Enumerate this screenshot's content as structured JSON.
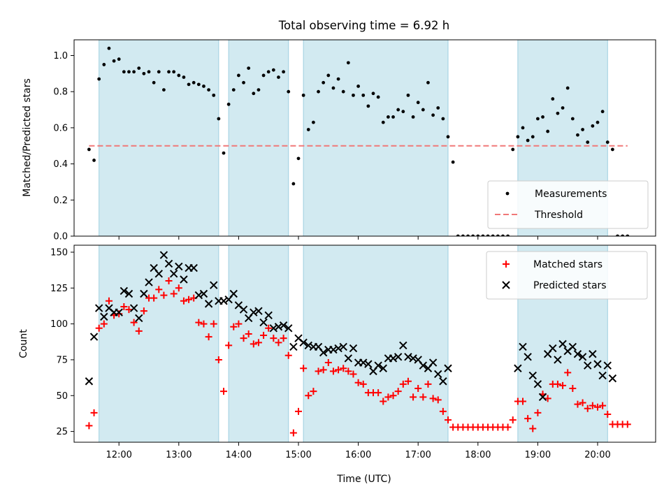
{
  "chart_data": [
    {
      "type": "scatter",
      "title": "Total observing time = 6.92 h",
      "xlabel": "",
      "ylabel": "Matched/Predicted stars",
      "ylim": [
        0,
        1.09
      ],
      "yticks": [
        "0.0",
        "0.2",
        "0.4",
        "0.6",
        "0.8",
        "1.0"
      ],
      "xticks": [
        "12:00",
        "13:00",
        "14:00",
        "15:00",
        "16:00",
        "17:00",
        "18:00",
        "19:00",
        "20:00"
      ],
      "legend_position": "lower right",
      "threshold": 0.5,
      "shaded_intervals": [
        [
          "11:40",
          "13:40"
        ],
        [
          "13:50",
          "14:50"
        ],
        [
          "15:05",
          "17:30"
        ],
        [
          "18:40",
          "20:10"
        ]
      ],
      "series": [
        {
          "name": "Measurements",
          "marker": "dot",
          "color": "#000000",
          "x": [
            "11:30",
            "11:35",
            "11:40",
            "11:45",
            "11:50",
            "11:55",
            "12:00",
            "12:05",
            "12:10",
            "12:15",
            "12:20",
            "12:25",
            "12:30",
            "12:35",
            "12:40",
            "12:45",
            "12:50",
            "12:55",
            "13:00",
            "13:05",
            "13:10",
            "13:15",
            "13:20",
            "13:25",
            "13:30",
            "13:35",
            "13:40",
            "13:45",
            "13:50",
            "13:55",
            "14:00",
            "14:05",
            "14:10",
            "14:15",
            "14:20",
            "14:25",
            "14:30",
            "14:35",
            "14:40",
            "14:45",
            "14:50",
            "14:55",
            "15:00",
            "15:05",
            "15:10",
            "15:15",
            "15:20",
            "15:25",
            "15:30",
            "15:35",
            "15:40",
            "15:45",
            "15:50",
            "15:55",
            "16:00",
            "16:05",
            "16:10",
            "16:15",
            "16:20",
            "16:25",
            "16:30",
            "16:35",
            "16:40",
            "16:45",
            "16:50",
            "16:55",
            "17:00",
            "17:05",
            "17:10",
            "17:15",
            "17:20",
            "17:25",
            "17:30",
            "17:35",
            "17:40",
            "17:45",
            "17:50",
            "17:55",
            "18:00",
            "18:05",
            "18:10",
            "18:15",
            "18:20",
            "18:25",
            "18:30",
            "18:35",
            "18:40",
            "18:45",
            "18:50",
            "18:55",
            "19:00",
            "19:05",
            "19:10",
            "19:15",
            "19:20",
            "19:25",
            "19:30",
            "19:35",
            "19:40",
            "19:45",
            "19:50",
            "19:55",
            "20:00",
            "20:05",
            "20:10",
            "20:15",
            "20:20",
            "20:25",
            "20:30"
          ],
          "y": [
            0.48,
            0.42,
            0.87,
            0.95,
            1.04,
            0.97,
            0.98,
            0.91,
            0.91,
            0.91,
            0.93,
            0.9,
            0.91,
            0.85,
            0.91,
            0.81,
            0.91,
            0.91,
            0.89,
            0.88,
            0.84,
            0.85,
            0.84,
            0.83,
            0.81,
            0.78,
            0.65,
            0.46,
            0.73,
            0.81,
            0.89,
            0.85,
            0.93,
            0.79,
            0.81,
            0.89,
            0.91,
            0.92,
            0.88,
            0.91,
            0.8,
            0.29,
            0.43,
            0.78,
            0.59,
            0.63,
            0.8,
            0.85,
            0.89,
            0.82,
            0.87,
            0.8,
            0.96,
            0.78,
            0.83,
            0.78,
            0.72,
            0.79,
            0.77,
            0.63,
            0.66,
            0.66,
            0.7,
            0.69,
            0.78,
            0.66,
            0.74,
            0.7,
            0.85,
            0.67,
            0.71,
            0.65,
            0.55,
            0.41,
            0.0,
            0.0,
            0.0,
            0.0,
            0.0,
            0.0,
            0.0,
            0.0,
            0.0,
            0.0,
            0.0,
            0.48,
            0.55,
            0.6,
            0.53,
            0.55,
            0.65,
            0.66,
            0.58,
            0.76,
            0.68,
            0.71,
            0.82,
            0.65,
            0.56,
            0.59,
            0.52,
            0.61,
            0.63,
            0.69,
            0.52,
            0.48,
            0.0,
            0.0,
            0.0
          ]
        },
        {
          "name": "Threshold",
          "line": "dashed",
          "color": "#f07878",
          "x": [
            "11:30",
            "20:30"
          ],
          "y": [
            0.5,
            0.5
          ]
        }
      ]
    },
    {
      "type": "scatter",
      "title": "",
      "xlabel": "Time (UTC)",
      "ylabel": "Count",
      "ylim": [
        17,
        154
      ],
      "yticks": [
        "25",
        "50",
        "75",
        "100",
        "125",
        "150"
      ],
      "xticks": [
        "12:00",
        "13:00",
        "14:00",
        "15:00",
        "16:00",
        "17:00",
        "18:00",
        "19:00",
        "20:00"
      ],
      "legend_position": "upper right",
      "shaded_intervals": [
        [
          "11:40",
          "13:40"
        ],
        [
          "13:50",
          "14:50"
        ],
        [
          "15:05",
          "17:30"
        ],
        [
          "18:40",
          "20:10"
        ]
      ],
      "series": [
        {
          "name": "Matched stars",
          "marker": "plus",
          "color": "#ff0000",
          "x": [
            "11:30",
            "11:35",
            "11:40",
            "11:45",
            "11:50",
            "11:55",
            "12:00",
            "12:05",
            "12:10",
            "12:15",
            "12:20",
            "12:25",
            "12:30",
            "12:35",
            "12:40",
            "12:45",
            "12:50",
            "12:55",
            "13:00",
            "13:05",
            "13:10",
            "13:15",
            "13:20",
            "13:25",
            "13:30",
            "13:35",
            "13:40",
            "13:45",
            "13:50",
            "13:55",
            "14:00",
            "14:05",
            "14:10",
            "14:15",
            "14:20",
            "14:25",
            "14:30",
            "14:35",
            "14:40",
            "14:45",
            "14:50",
            "14:55",
            "15:00",
            "15:05",
            "15:10",
            "15:15",
            "15:20",
            "15:25",
            "15:30",
            "15:35",
            "15:40",
            "15:45",
            "15:50",
            "15:55",
            "16:00",
            "16:05",
            "16:10",
            "16:15",
            "16:20",
            "16:25",
            "16:30",
            "16:35",
            "16:40",
            "16:45",
            "16:50",
            "16:55",
            "17:00",
            "17:05",
            "17:10",
            "17:15",
            "17:20",
            "17:25",
            "17:30",
            "17:35",
            "17:40",
            "17:45",
            "17:50",
            "17:55",
            "18:00",
            "18:05",
            "18:10",
            "18:15",
            "18:20",
            "18:25",
            "18:30",
            "18:35",
            "18:40",
            "18:45",
            "18:50",
            "18:55",
            "19:00",
            "19:05",
            "19:10",
            "19:15",
            "19:20",
            "19:25",
            "19:30",
            "19:35",
            "19:40",
            "19:45",
            "19:50",
            "19:55",
            "20:00",
            "20:05",
            "20:10",
            "20:15",
            "20:20",
            "20:25",
            "20:30"
          ],
          "y": [
            29,
            38,
            97,
            100,
            116,
            106,
            107,
            112,
            110,
            101,
            95,
            109,
            118,
            118,
            124,
            120,
            130,
            121,
            125,
            116,
            117,
            118,
            101,
            100,
            91,
            100,
            75,
            53,
            85,
            98,
            100,
            90,
            93,
            86,
            87,
            92,
            97,
            90,
            87,
            90,
            78,
            24,
            39,
            69,
            50,
            53,
            67,
            68,
            73,
            67,
            68,
            69,
            67,
            65,
            59,
            58,
            52,
            52,
            52,
            46,
            49,
            50,
            53,
            58,
            60,
            49,
            55,
            49,
            58,
            48,
            47,
            39,
            33,
            28,
            28,
            28,
            28,
            28,
            28,
            28,
            28,
            28,
            28,
            28,
            28,
            33,
            46,
            46,
            34,
            27,
            38,
            51,
            48,
            58,
            58,
            57,
            66,
            55,
            44,
            45,
            41,
            43,
            42,
            43,
            37,
            30,
            30,
            30,
            30
          ]
        },
        {
          "name": "Predicted stars",
          "marker": "x",
          "color": "#000000",
          "x": [
            "11:30",
            "11:35",
            "11:40",
            "11:45",
            "11:50",
            "11:55",
            "12:00",
            "12:05",
            "12:10",
            "12:15",
            "12:20",
            "12:25",
            "12:30",
            "12:35",
            "12:40",
            "12:45",
            "12:50",
            "12:55",
            "13:00",
            "13:05",
            "13:10",
            "13:15",
            "13:20",
            "13:25",
            "13:30",
            "13:35",
            "13:40",
            "13:45",
            "13:50",
            "13:55",
            "14:00",
            "14:05",
            "14:10",
            "14:15",
            "14:20",
            "14:25",
            "14:30",
            "14:35",
            "14:40",
            "14:45",
            "14:50",
            "14:55",
            "15:00",
            "15:05",
            "15:10",
            "15:15",
            "15:20",
            "15:25",
            "15:30",
            "15:35",
            "15:40",
            "15:45",
            "15:50",
            "15:55",
            "16:00",
            "16:05",
            "16:10",
            "16:15",
            "16:20",
            "16:25",
            "16:30",
            "16:35",
            "16:40",
            "16:45",
            "16:50",
            "16:55",
            "17:00",
            "17:05",
            "17:10",
            "17:15",
            "17:20",
            "17:25",
            "17:30",
            "18:40",
            "18:45",
            "18:50",
            "18:55",
            "19:00",
            "19:05",
            "19:10",
            "19:15",
            "19:20",
            "19:25",
            "19:30",
            "19:35",
            "19:40",
            "19:45",
            "19:50",
            "19:55",
            "20:00",
            "20:05",
            "20:10",
            "20:15"
          ],
          "y": [
            60,
            91,
            111,
            105,
            111,
            108,
            108,
            123,
            121,
            111,
            104,
            121,
            129,
            139,
            135,
            148,
            142,
            135,
            140,
            131,
            139,
            139,
            120,
            121,
            114,
            127,
            116,
            116,
            117,
            121,
            113,
            110,
            104,
            108,
            109,
            101,
            106,
            97,
            98,
            99,
            97,
            84,
            90,
            87,
            85,
            84,
            84,
            80,
            82,
            82,
            83,
            84,
            76,
            83,
            73,
            73,
            72,
            67,
            71,
            69,
            76,
            76,
            77,
            85,
            77,
            76,
            75,
            71,
            69,
            73,
            65,
            60,
            69,
            69,
            84,
            77,
            64,
            58,
            49,
            79,
            83,
            75,
            86,
            81,
            84,
            79,
            77,
            71,
            79,
            72,
            64,
            71,
            62
          ]
        }
      ]
    }
  ]
}
